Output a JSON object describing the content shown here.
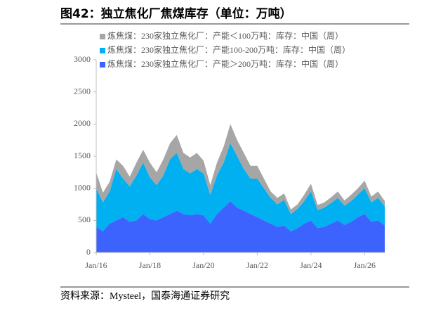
{
  "chart_data": {
    "type": "area",
    "title": "图42：独立焦化厂焦煤库存（单位：万吨）",
    "source": "资料来源：Mysteel，国泰海通证券研究",
    "x": [
      2016.0,
      2016.25,
      2016.5,
      2016.75,
      2017.0,
      2017.25,
      2017.5,
      2017.75,
      2018.0,
      2018.25,
      2018.5,
      2018.75,
      2019.0,
      2019.25,
      2019.5,
      2019.75,
      2020.0,
      2020.25,
      2020.5,
      2020.75,
      2021.0,
      2021.25,
      2021.5,
      2021.75,
      2022.0,
      2022.25,
      2022.5,
      2022.75,
      2023.0,
      2023.25,
      2023.5,
      2023.75,
      2024.0,
      2024.25,
      2024.5,
      2024.75,
      2025.0,
      2025.25,
      2025.5,
      2025.75,
      2026.0,
      2026.25,
      2026.5,
      2026.75
    ],
    "xlim": [
      2016,
      2026.75
    ],
    "xticks": [
      {
        "value": 2016,
        "label": "Jan/16"
      },
      {
        "value": 2018,
        "label": "Jan/18"
      },
      {
        "value": 2020,
        "label": "Jan/20"
      },
      {
        "value": 2022,
        "label": "Jan/22"
      },
      {
        "value": 2024,
        "label": "Jan/24"
      },
      {
        "value": 2026,
        "label": "Jan/26"
      }
    ],
    "ylim": [
      0,
      3000
    ],
    "yticks": [
      0,
      500,
      1000,
      1500,
      2000,
      2500,
      3000
    ],
    "series": [
      {
        "name": "炼焦煤：230家独立焦化厂：产能＜100万吨：库存：中国（周）",
        "color": "#a6a6a6",
        "values": [
          250,
          150,
          150,
          150,
          200,
          150,
          200,
          200,
          230,
          200,
          250,
          250,
          280,
          250,
          250,
          250,
          200,
          150,
          200,
          250,
          300,
          250,
          250,
          200,
          200,
          150,
          100,
          100,
          100,
          70,
          70,
          100,
          120,
          80,
          80,
          90,
          100,
          80,
          100,
          100,
          120,
          90,
          100,
          80
        ]
      },
      {
        "name": "炼焦煤：230家独立焦化厂：产能100-200万吨：库存：中国（周）",
        "color": "#00b0f0",
        "values": [
          600,
          450,
          500,
          800,
          600,
          550,
          700,
          800,
          650,
          550,
          650,
          850,
          900,
          700,
          650,
          700,
          650,
          450,
          600,
          700,
          900,
          800,
          650,
          550,
          600,
          500,
          400,
          350,
          400,
          270,
          300,
          350,
          450,
          280,
          300,
          320,
          350,
          300,
          320,
          350,
          400,
          300,
          350,
          300
        ]
      },
      {
        "name": "炼焦煤：230家独立焦化厂：产能＞200万吨：库存：中国（周）",
        "color": "#3d63ff",
        "values": [
          400,
          330,
          450,
          500,
          550,
          480,
          500,
          600,
          520,
          500,
          550,
          600,
          650,
          600,
          580,
          600,
          580,
          450,
          600,
          700,
          800,
          700,
          650,
          600,
          550,
          500,
          450,
          400,
          420,
          330,
          380,
          450,
          500,
          380,
          400,
          450,
          500,
          430,
          480,
          550,
          600,
          480,
          500,
          420
        ]
      }
    ]
  }
}
